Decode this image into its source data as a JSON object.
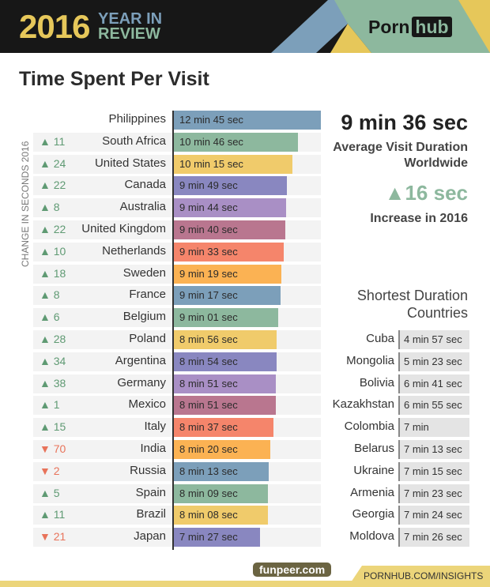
{
  "header": {
    "year": "2016",
    "line1": "YEAR IN",
    "line2": "REVIEW",
    "logo_a": "Porn",
    "logo_b": "hub"
  },
  "title": "Time Spent Per Visit",
  "footer": "PORNHUB.COM/INSIGHTS",
  "watermark": "funpeer.com",
  "summary": {
    "average": "9 min 36 sec",
    "average_label1": "Average Visit Duration",
    "average_label2": "Worldwide",
    "increase": "▲16 sec",
    "increase_label": "Increase in 2016"
  },
  "shortest": {
    "title1": "Shortest Duration",
    "title2": "Countries",
    "rows": [
      {
        "country": "Cuba",
        "time": "4 min 57 sec"
      },
      {
        "country": "Mongolia",
        "time": "5 min 23 sec"
      },
      {
        "country": "Bolivia",
        "time": "6 min 41 sec"
      },
      {
        "country": "Kazakhstan",
        "time": "6 min 55 sec"
      },
      {
        "country": "Colombia",
        "time": "7 min"
      },
      {
        "country": "Belarus",
        "time": "7 min 13 sec"
      },
      {
        "country": "Ukraine",
        "time": "7 min 15 sec"
      },
      {
        "country": "Armenia",
        "time": "7 min 23 sec"
      },
      {
        "country": "Georgia",
        "time": "7 min 24 sec"
      },
      {
        "country": "Moldova",
        "time": "7 min 26 sec"
      }
    ]
  },
  "chart_data": {
    "type": "bar",
    "orientation": "horizontal",
    "ylabel": "CHANGE IN SECONDS 2016",
    "unit": "seconds",
    "colors": [
      "#7c9fba",
      "#8db89e",
      "#f0cb6b",
      "#8987c0",
      "#a98fc5",
      "#b9768f",
      "#f5856b",
      "#fbb253"
    ],
    "up_color": "#5f9a73",
    "down_color": "#e8735a",
    "rows": [
      {
        "country": "Philippines",
        "label": "12 min 45 sec",
        "seconds": 765,
        "change": "",
        "dir": ""
      },
      {
        "country": "South Africa",
        "label": "10 min 46 sec",
        "seconds": 646,
        "change": "11",
        "dir": "up"
      },
      {
        "country": "United States",
        "label": "10 min 15 sec",
        "seconds": 615,
        "change": "24",
        "dir": "up"
      },
      {
        "country": "Canada",
        "label": "9 min 49 sec",
        "seconds": 589,
        "change": "22",
        "dir": "up"
      },
      {
        "country": "Australia",
        "label": "9 min 44 sec",
        "seconds": 584,
        "change": "8",
        "dir": "up"
      },
      {
        "country": "United Kingdom",
        "label": "9 min 40 sec",
        "seconds": 580,
        "change": "22",
        "dir": "up"
      },
      {
        "country": "Netherlands",
        "label": "9 min 33 sec",
        "seconds": 573,
        "change": "10",
        "dir": "up"
      },
      {
        "country": "Sweden",
        "label": "9 min 19 sec",
        "seconds": 559,
        "change": "18",
        "dir": "up"
      },
      {
        "country": "France",
        "label": "9 min 17 sec",
        "seconds": 557,
        "change": "8",
        "dir": "up"
      },
      {
        "country": "Belgium",
        "label": "9 min 01 sec",
        "seconds": 541,
        "change": "6",
        "dir": "up"
      },
      {
        "country": "Poland",
        "label": "8 min 56 sec",
        "seconds": 536,
        "change": "28",
        "dir": "up"
      },
      {
        "country": "Argentina",
        "label": "8 min 54 sec",
        "seconds": 534,
        "change": "34",
        "dir": "up"
      },
      {
        "country": "Germany",
        "label": "8 min 51 sec",
        "seconds": 531,
        "change": "38",
        "dir": "up"
      },
      {
        "country": "Mexico",
        "label": "8 min 51 sec",
        "seconds": 531,
        "change": "1",
        "dir": "up"
      },
      {
        "country": "Italy",
        "label": "8 min 37 sec",
        "seconds": 517,
        "change": "15",
        "dir": "up"
      },
      {
        "country": "India",
        "label": "8 min 20 sec",
        "seconds": 500,
        "change": "70",
        "dir": "down"
      },
      {
        "country": "Russia",
        "label": "8 min 13 sec",
        "seconds": 493,
        "change": "2",
        "dir": "down"
      },
      {
        "country": "Spain",
        "label": "8 min 09 sec",
        "seconds": 489,
        "change": "5",
        "dir": "up"
      },
      {
        "country": "Brazil",
        "label": "8 min 08 sec",
        "seconds": 488,
        "change": "11",
        "dir": "up"
      },
      {
        "country": "Japan",
        "label": "7 min 27 sec",
        "seconds": 447,
        "change": "21",
        "dir": "down"
      }
    ]
  }
}
